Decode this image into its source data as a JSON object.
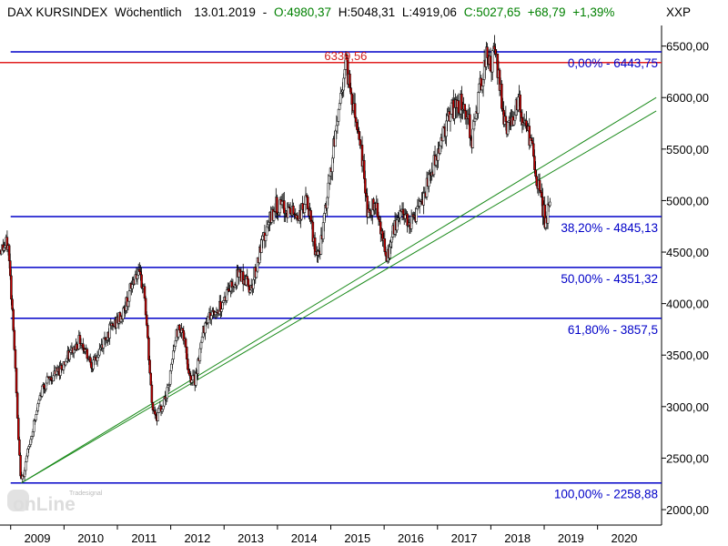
{
  "chart_data": {
    "type": "candlestick",
    "header": {
      "index": "DAX KURSINDEX",
      "period": "Wöchentlich",
      "date": "13.01.2019",
      "open": "O:4980,37",
      "high": "H:5048,31",
      "low": "L:4919,06",
      "close": "C:5027,65",
      "change": "+68,79",
      "change_pct": "+1,39%"
    },
    "symbol": "XXP",
    "ylim": [
      1850,
      6700
    ],
    "y_ticks": [
      2000,
      2500,
      3000,
      3500,
      4000,
      4500,
      5000,
      5500,
      6000,
      6500
    ],
    "y_tick_labels": [
      "2000,00",
      "2500,00",
      "3000,00",
      "3500,00",
      "4000,00",
      "4500,00",
      "5000,00",
      "5500,00",
      "6000,00",
      "6500,00"
    ],
    "x_ticks": [
      "2009",
      "2010",
      "2011",
      "2012",
      "2013",
      "2014",
      "2015",
      "2016",
      "2017",
      "2018",
      "2019",
      "2020"
    ],
    "xlim": [
      2008.8,
      2021.2
    ],
    "peak_marker": {
      "value": 6339.56,
      "label": "6339,56"
    },
    "fib_levels": [
      {
        "value": 6443.75,
        "label": "0,00% - 6443,75"
      },
      {
        "value": 4845.13,
        "label": "38,20% - 4845,13"
      },
      {
        "value": 4351.32,
        "label": "50,00% - 4351,32"
      },
      {
        "value": 3857.5,
        "label": "61,80% - 3857,5"
      },
      {
        "value": 2258.88,
        "label": "100,00% - 2258,88"
      }
    ],
    "trendlines": [
      {
        "x1": 2009.2,
        "y1": 2258.88,
        "x2": 2021.1,
        "y2": 6000
      },
      {
        "x1": 2009.2,
        "y1": 2258.88,
        "x2": 2021.1,
        "y2": 5870
      }
    ],
    "price_anchors": [
      [
        2008.8,
        4520
      ],
      [
        2008.95,
        4580
      ],
      [
        2009.05,
        3800
      ],
      [
        2009.15,
        2600
      ],
      [
        2009.2,
        2258.88
      ],
      [
        2009.4,
        2750
      ],
      [
        2009.6,
        3200
      ],
      [
        2009.9,
        3350
      ],
      [
        2010.1,
        3500
      ],
      [
        2010.3,
        3650
      ],
      [
        2010.55,
        3400
      ],
      [
        2010.8,
        3700
      ],
      [
        2011.1,
        3900
      ],
      [
        2011.35,
        4300
      ],
      [
        2011.5,
        4150
      ],
      [
        2011.65,
        3000
      ],
      [
        2011.75,
        2900
      ],
      [
        2011.95,
        3150
      ],
      [
        2012.1,
        3700
      ],
      [
        2012.2,
        3800
      ],
      [
        2012.35,
        3300
      ],
      [
        2012.45,
        3250
      ],
      [
        2012.65,
        3850
      ],
      [
        2012.9,
        3950
      ],
      [
        2013.1,
        4150
      ],
      [
        2013.3,
        4300
      ],
      [
        2013.5,
        4150
      ],
      [
        2013.7,
        4550
      ],
      [
        2013.95,
        4950
      ],
      [
        2014.2,
        4900
      ],
      [
        2014.4,
        4850
      ],
      [
        2014.55,
        5000
      ],
      [
        2014.75,
        4400
      ],
      [
        2014.85,
        4700
      ],
      [
        2015.0,
        5300
      ],
      [
        2015.15,
        5900
      ],
      [
        2015.28,
        6339.56
      ],
      [
        2015.4,
        6000
      ],
      [
        2015.55,
        5600
      ],
      [
        2015.7,
        4850
      ],
      [
        2015.85,
        5000
      ],
      [
        2016.05,
        4400
      ],
      [
        2016.15,
        4650
      ],
      [
        2016.3,
        4900
      ],
      [
        2016.5,
        4800
      ],
      [
        2016.7,
        4950
      ],
      [
        2016.9,
        5300
      ],
      [
        2017.1,
        5650
      ],
      [
        2017.3,
        5900
      ],
      [
        2017.5,
        5950
      ],
      [
        2017.65,
        5600
      ],
      [
        2017.8,
        6100
      ],
      [
        2017.9,
        6400
      ],
      [
        2018.0,
        6300
      ],
      [
        2018.08,
        6443.75
      ],
      [
        2018.25,
        5800
      ],
      [
        2018.35,
        5700
      ],
      [
        2018.5,
        6000
      ],
      [
        2018.6,
        5750
      ],
      [
        2018.75,
        5600
      ],
      [
        2018.85,
        5200
      ],
      [
        2018.95,
        5000
      ],
      [
        2019.02,
        4800
      ],
      [
        2019.08,
        4900
      ],
      [
        2019.12,
        5027.65
      ]
    ]
  },
  "logo": {
    "small": "Tradesignal",
    "main": "onLine"
  }
}
